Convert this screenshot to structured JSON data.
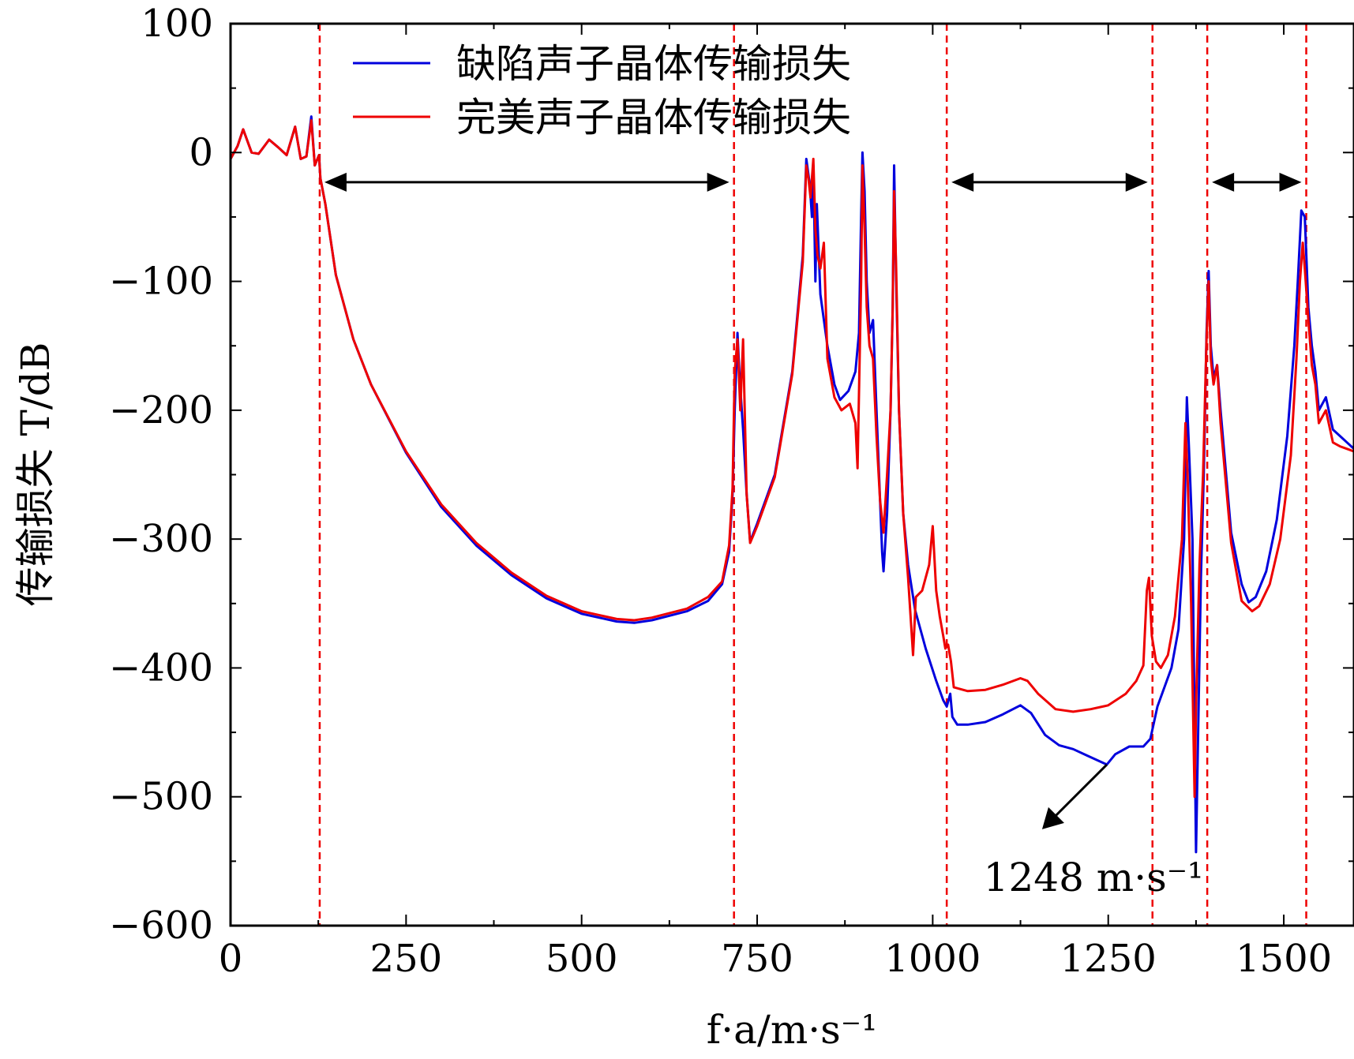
{
  "chart_data": {
    "type": "line",
    "xlabel": "f·a/m·s⁻¹",
    "ylabel": "传输损失 T/dB",
    "xlim": [
      0,
      1600
    ],
    "ylim": [
      -600,
      100
    ],
    "x_ticks": [
      0,
      250,
      500,
      750,
      1000,
      1250,
      1500
    ],
    "x_tick_labels": [
      "0",
      "250",
      "500",
      "750",
      "1000",
      "1250",
      "1500"
    ],
    "y_ticks": [
      100,
      0,
      -100,
      -200,
      -300,
      -400,
      -500,
      -600
    ],
    "y_tick_labels": [
      "100",
      "0",
      "−100",
      "−200",
      "−300",
      "−400",
      "−500",
      "−600"
    ],
    "legend": {
      "position": "top-center",
      "entries": [
        "缺陷声子晶体传输损失",
        "完美声子晶体传输损失"
      ]
    },
    "series": [
      {
        "name": "缺陷声子晶体传输损失",
        "color": "#0000dd",
        "points": [
          [
            0,
            -5
          ],
          [
            10,
            5
          ],
          [
            18,
            18
          ],
          [
            30,
            0
          ],
          [
            40,
            -1
          ],
          [
            55,
            10
          ],
          [
            68,
            4
          ],
          [
            80,
            -2
          ],
          [
            92,
            20
          ],
          [
            100,
            -5
          ],
          [
            108,
            -3
          ],
          [
            115,
            28
          ],
          [
            120,
            -10
          ],
          [
            126,
            -2
          ],
          [
            128,
            -20
          ],
          [
            135,
            -40
          ],
          [
            150,
            -95
          ],
          [
            175,
            -145
          ],
          [
            200,
            -180
          ],
          [
            250,
            -233
          ],
          [
            300,
            -275
          ],
          [
            350,
            -305
          ],
          [
            400,
            -328
          ],
          [
            450,
            -346
          ],
          [
            500,
            -358
          ],
          [
            550,
            -364
          ],
          [
            575,
            -365
          ],
          [
            600,
            -363
          ],
          [
            650,
            -356
          ],
          [
            680,
            -348
          ],
          [
            700,
            -335
          ],
          [
            710,
            -310
          ],
          [
            715,
            -265
          ],
          [
            718,
            -200
          ],
          [
            722,
            -140
          ],
          [
            725,
            -175
          ],
          [
            730,
            -215
          ],
          [
            735,
            -265
          ],
          [
            740,
            -302
          ],
          [
            750,
            -288
          ],
          [
            775,
            -250
          ],
          [
            800,
            -170
          ],
          [
            815,
            -80
          ],
          [
            820,
            -5
          ],
          [
            825,
            -25
          ],
          [
            828,
            -50
          ],
          [
            830,
            -10
          ],
          [
            833,
            -100
          ],
          [
            835,
            -40
          ],
          [
            840,
            -110
          ],
          [
            850,
            -150
          ],
          [
            860,
            -180
          ],
          [
            868,
            -192
          ],
          [
            880,
            -185
          ],
          [
            890,
            -170
          ],
          [
            895,
            -140
          ],
          [
            898,
            -50
          ],
          [
            900,
            0
          ],
          [
            903,
            -30
          ],
          [
            906,
            -100
          ],
          [
            910,
            -140
          ],
          [
            915,
            -130
          ],
          [
            920,
            -200
          ],
          [
            925,
            -270
          ],
          [
            928,
            -310
          ],
          [
            930,
            -325
          ],
          [
            935,
            -280
          ],
          [
            940,
            -200
          ],
          [
            943,
            -120
          ],
          [
            945,
            -10
          ],
          [
            948,
            -100
          ],
          [
            952,
            -200
          ],
          [
            958,
            -280
          ],
          [
            965,
            -320
          ],
          [
            975,
            -355
          ],
          [
            990,
            -385
          ],
          [
            1005,
            -410
          ],
          [
            1015,
            -425
          ],
          [
            1020,
            -430
          ],
          [
            1025,
            -420
          ],
          [
            1028,
            -438
          ],
          [
            1035,
            -444
          ],
          [
            1050,
            -444
          ],
          [
            1075,
            -442
          ],
          [
            1100,
            -436
          ],
          [
            1125,
            -429
          ],
          [
            1140,
            -435
          ],
          [
            1160,
            -452
          ],
          [
            1180,
            -460
          ],
          [
            1200,
            -463
          ],
          [
            1220,
            -468
          ],
          [
            1240,
            -473
          ],
          [
            1248,
            -475
          ],
          [
            1260,
            -467
          ],
          [
            1280,
            -461
          ],
          [
            1300,
            -461
          ],
          [
            1310,
            -455
          ],
          [
            1320,
            -430
          ],
          [
            1340,
            -400
          ],
          [
            1350,
            -370
          ],
          [
            1358,
            -300
          ],
          [
            1362,
            -190
          ],
          [
            1365,
            -230
          ],
          [
            1370,
            -300
          ],
          [
            1375,
            -543
          ],
          [
            1378,
            -450
          ],
          [
            1382,
            -330
          ],
          [
            1386,
            -250
          ],
          [
            1390,
            -140
          ],
          [
            1393,
            -92
          ],
          [
            1396,
            -150
          ],
          [
            1400,
            -175
          ],
          [
            1405,
            -165
          ],
          [
            1410,
            -200
          ],
          [
            1425,
            -295
          ],
          [
            1440,
            -335
          ],
          [
            1450,
            -349
          ],
          [
            1460,
            -345
          ],
          [
            1475,
            -325
          ],
          [
            1490,
            -285
          ],
          [
            1505,
            -220
          ],
          [
            1515,
            -150
          ],
          [
            1520,
            -100
          ],
          [
            1525,
            -45
          ],
          [
            1530,
            -50
          ],
          [
            1535,
            -120
          ],
          [
            1540,
            -150
          ],
          [
            1545,
            -170
          ],
          [
            1550,
            -200
          ],
          [
            1560,
            -190
          ],
          [
            1570,
            -215
          ],
          [
            1580,
            -220
          ],
          [
            1590,
            -225
          ],
          [
            1600,
            -230
          ]
        ]
      },
      {
        "name": "完美声子晶体传输损失",
        "color": "#ee0000",
        "points": [
          [
            0,
            -5
          ],
          [
            10,
            5
          ],
          [
            18,
            18
          ],
          [
            30,
            0
          ],
          [
            40,
            -1
          ],
          [
            55,
            10
          ],
          [
            68,
            4
          ],
          [
            80,
            -2
          ],
          [
            92,
            20
          ],
          [
            100,
            -5
          ],
          [
            108,
            -3
          ],
          [
            115,
            25
          ],
          [
            120,
            -10
          ],
          [
            126,
            -2
          ],
          [
            128,
            -20
          ],
          [
            135,
            -40
          ],
          [
            150,
            -95
          ],
          [
            175,
            -145
          ],
          [
            200,
            -180
          ],
          [
            250,
            -232
          ],
          [
            300,
            -273
          ],
          [
            350,
            -303
          ],
          [
            400,
            -326
          ],
          [
            450,
            -344
          ],
          [
            500,
            -356
          ],
          [
            550,
            -362
          ],
          [
            575,
            -363
          ],
          [
            600,
            -361
          ],
          [
            650,
            -354
          ],
          [
            680,
            -345
          ],
          [
            700,
            -333
          ],
          [
            710,
            -305
          ],
          [
            715,
            -260
          ],
          [
            718,
            -170
          ],
          [
            722,
            -145
          ],
          [
            726,
            -200
          ],
          [
            730,
            -145
          ],
          [
            735,
            -265
          ],
          [
            740,
            -303
          ],
          [
            750,
            -290
          ],
          [
            775,
            -252
          ],
          [
            800,
            -172
          ],
          [
            815,
            -85
          ],
          [
            820,
            -10
          ],
          [
            823,
            -20
          ],
          [
            826,
            -35
          ],
          [
            830,
            -5
          ],
          [
            833,
            -60
          ],
          [
            836,
            -80
          ],
          [
            840,
            -90
          ],
          [
            845,
            -70
          ],
          [
            850,
            -160
          ],
          [
            860,
            -190
          ],
          [
            870,
            -200
          ],
          [
            882,
            -195
          ],
          [
            890,
            -210
          ],
          [
            893,
            -245
          ],
          [
            898,
            -100
          ],
          [
            900,
            -10
          ],
          [
            903,
            -60
          ],
          [
            906,
            -120
          ],
          [
            910,
            -150
          ],
          [
            915,
            -160
          ],
          [
            920,
            -220
          ],
          [
            925,
            -270
          ],
          [
            930,
            -295
          ],
          [
            935,
            -250
          ],
          [
            940,
            -200
          ],
          [
            943,
            -120
          ],
          [
            945,
            -30
          ],
          [
            948,
            -90
          ],
          [
            952,
            -200
          ],
          [
            958,
            -280
          ],
          [
            965,
            -330
          ],
          [
            972,
            -390
          ],
          [
            976,
            -345
          ],
          [
            985,
            -340
          ],
          [
            995,
            -320
          ],
          [
            1000,
            -290
          ],
          [
            1005,
            -340
          ],
          [
            1010,
            -360
          ],
          [
            1015,
            -375
          ],
          [
            1018,
            -385
          ],
          [
            1022,
            -382
          ],
          [
            1026,
            -395
          ],
          [
            1030,
            -415
          ],
          [
            1050,
            -418
          ],
          [
            1075,
            -417
          ],
          [
            1100,
            -413
          ],
          [
            1125,
            -408
          ],
          [
            1135,
            -410
          ],
          [
            1150,
            -420
          ],
          [
            1175,
            -432
          ],
          [
            1200,
            -434
          ],
          [
            1225,
            -432
          ],
          [
            1250,
            -429
          ],
          [
            1275,
            -420
          ],
          [
            1290,
            -410
          ],
          [
            1300,
            -398
          ],
          [
            1305,
            -340
          ],
          [
            1308,
            -330
          ],
          [
            1312,
            -375
          ],
          [
            1318,
            -395
          ],
          [
            1325,
            -400
          ],
          [
            1335,
            -390
          ],
          [
            1345,
            -360
          ],
          [
            1355,
            -300
          ],
          [
            1360,
            -210
          ],
          [
            1363,
            -250
          ],
          [
            1368,
            -350
          ],
          [
            1373,
            -500
          ],
          [
            1375,
            -430
          ],
          [
            1380,
            -320
          ],
          [
            1385,
            -250
          ],
          [
            1390,
            -145
          ],
          [
            1393,
            -100
          ],
          [
            1396,
            -160
          ],
          [
            1400,
            -180
          ],
          [
            1405,
            -165
          ],
          [
            1410,
            -210
          ],
          [
            1425,
            -303
          ],
          [
            1440,
            -348
          ],
          [
            1455,
            -356
          ],
          [
            1465,
            -352
          ],
          [
            1480,
            -335
          ],
          [
            1495,
            -300
          ],
          [
            1510,
            -235
          ],
          [
            1518,
            -160
          ],
          [
            1523,
            -100
          ],
          [
            1527,
            -70
          ],
          [
            1530,
            -90
          ],
          [
            1535,
            -130
          ],
          [
            1540,
            -165
          ],
          [
            1545,
            -180
          ],
          [
            1550,
            -210
          ],
          [
            1560,
            -200
          ],
          [
            1570,
            -225
          ],
          [
            1580,
            -228
          ],
          [
            1590,
            -230
          ],
          [
            1600,
            -232
          ]
        ]
      }
    ],
    "vlines": [
      127,
      717,
      1020,
      1313,
      1391,
      1532
    ],
    "band_arrows": [
      [
        127,
        717
      ],
      [
        1020,
        1313
      ],
      [
        1391,
        1532
      ]
    ],
    "band_arrow_y": -23,
    "annotation": {
      "text": "1248 m·s⁻¹",
      "point_x": 1248,
      "point_y": -475
    }
  }
}
